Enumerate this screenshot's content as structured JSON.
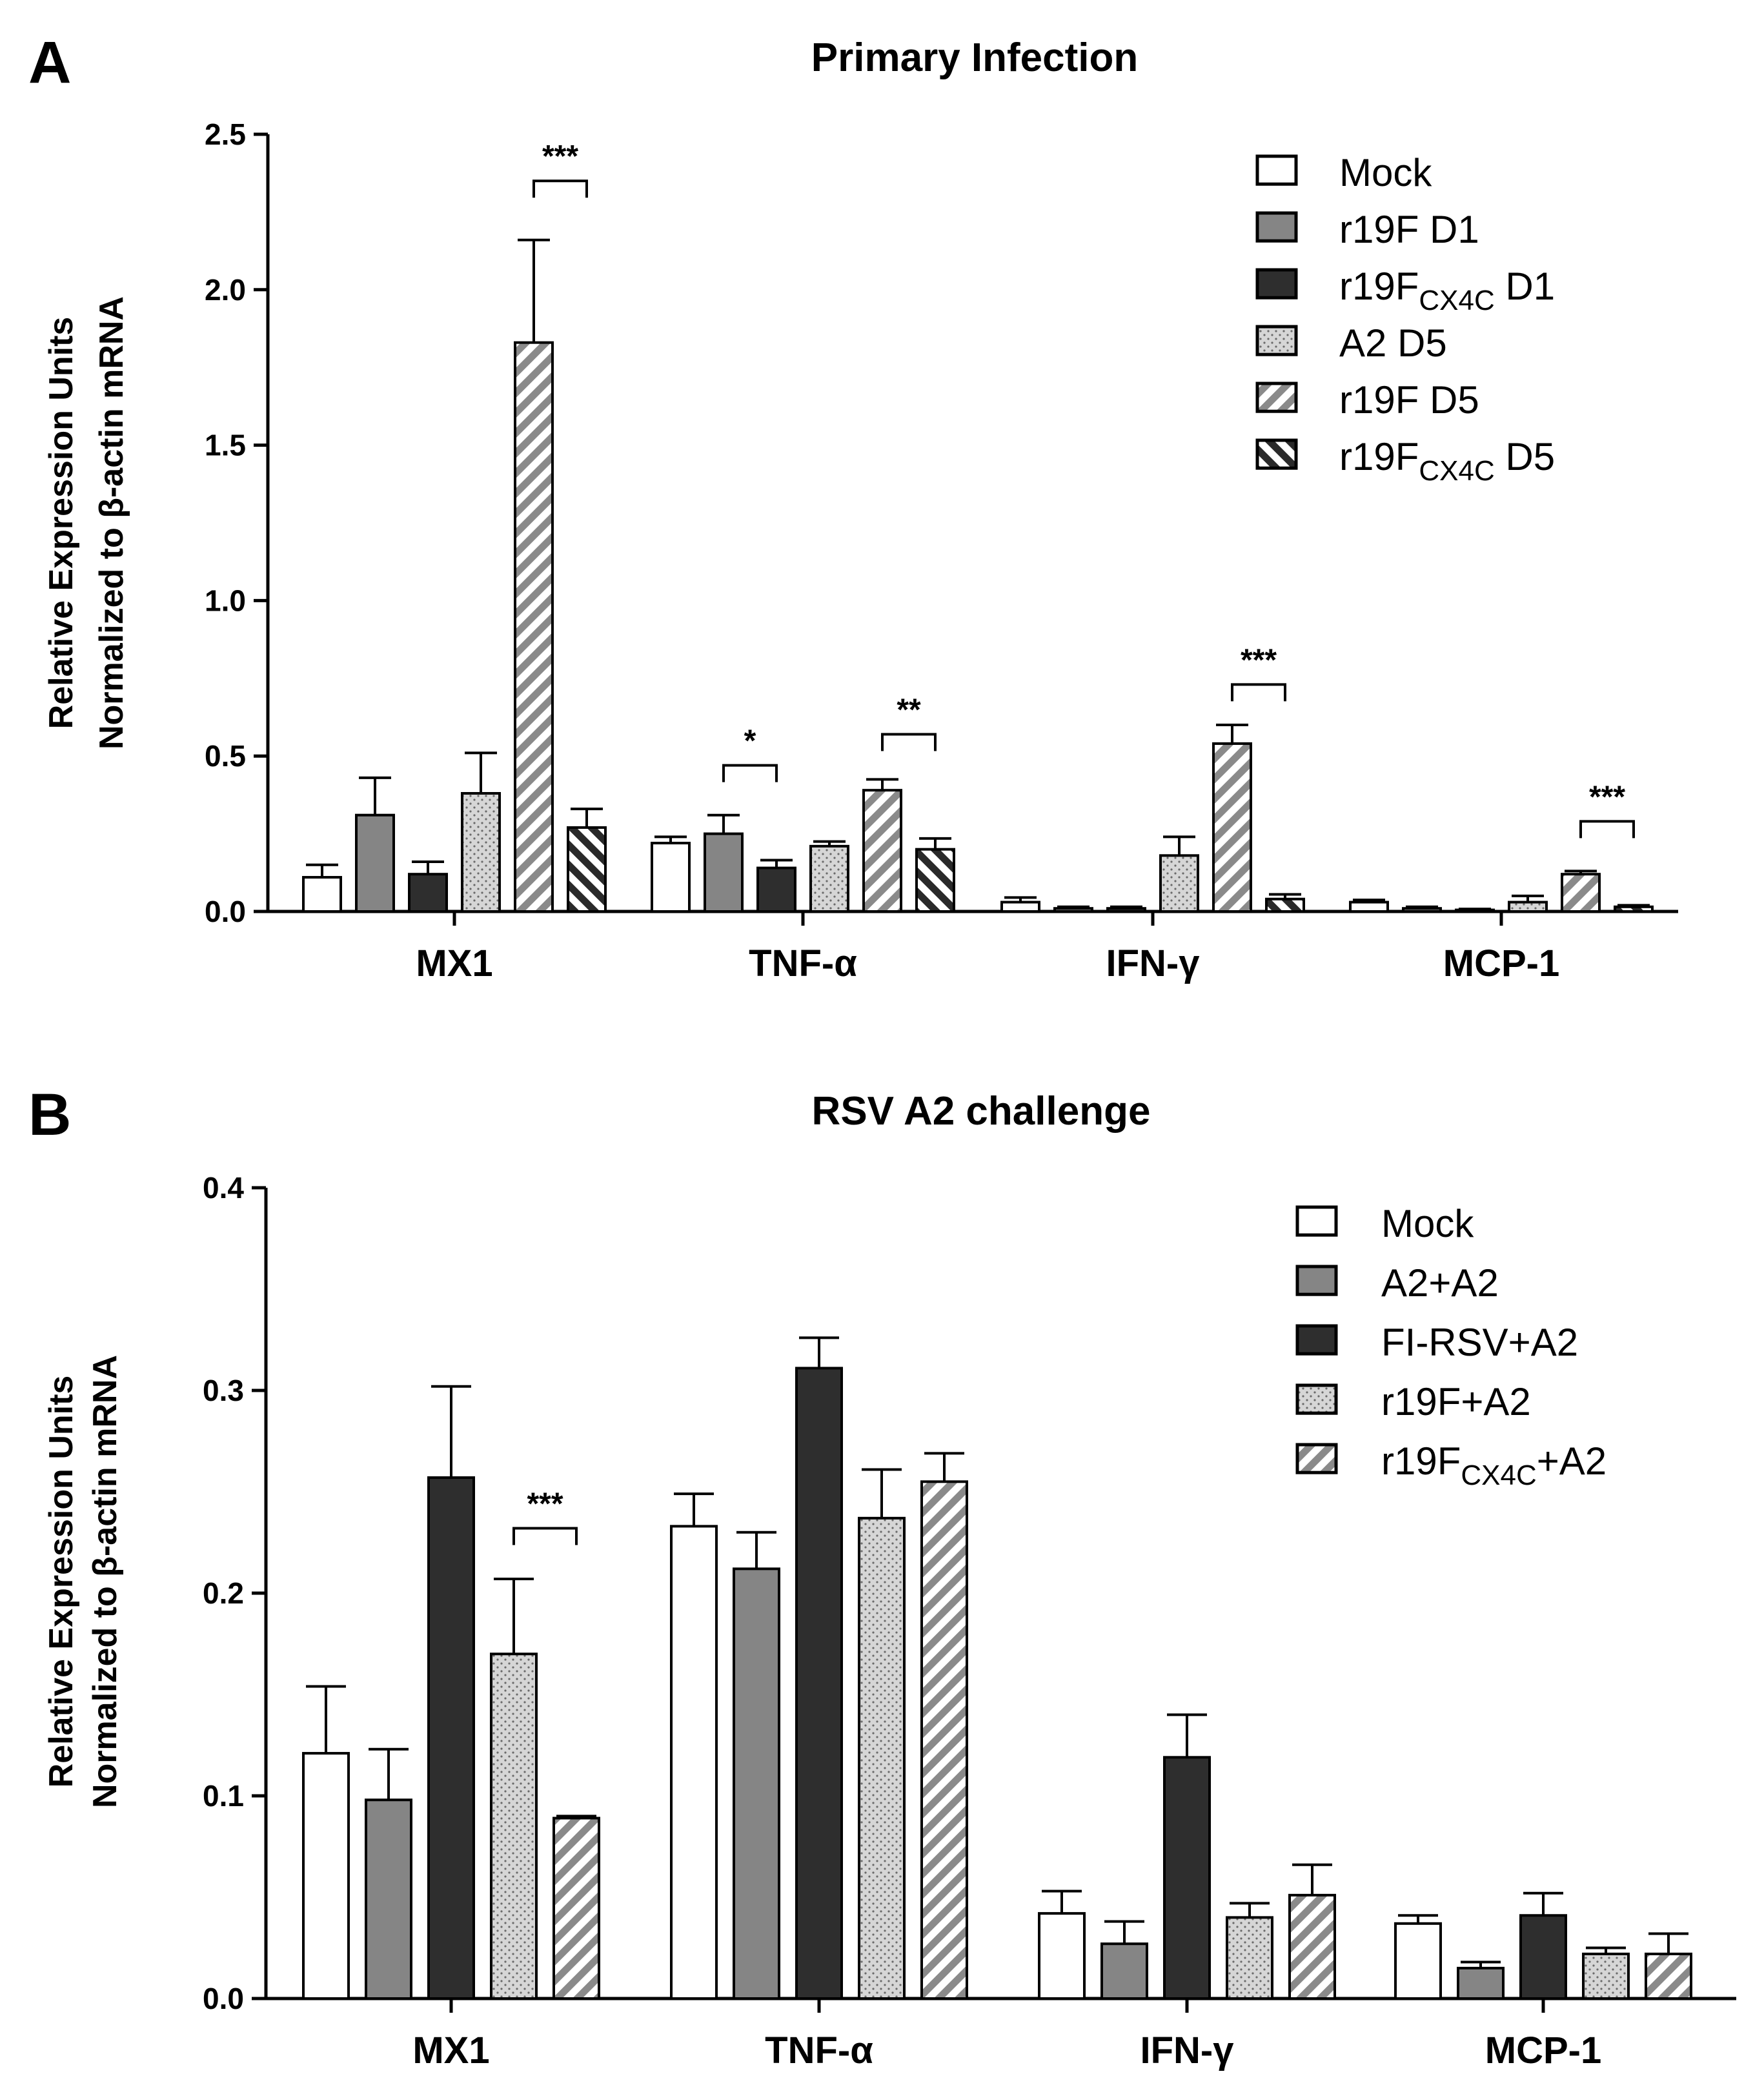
{
  "chart_data": [
    {
      "panel": "A",
      "type": "bar",
      "title": "Primary Infection",
      "ylabel_line1": "Relative Expression Units",
      "ylabel_line2": "Normalized to β-actin mRNA",
      "ylim": [
        0,
        2.5
      ],
      "yticks": [
        "0.0",
        "0.5",
        "1.0",
        "1.5",
        "2.0",
        "2.5"
      ],
      "categories": [
        "MX1",
        "TNF-α",
        "IFN-γ",
        "MCP-1"
      ],
      "series": [
        {
          "name": "Mock",
          "legend_base": "Mock",
          "legend_sub": "",
          "legend_suffix": "",
          "pattern": "white",
          "values": [
            0.11,
            0.22,
            0.03,
            0.03
          ],
          "errors": [
            0.04,
            0.02,
            0.015,
            0.007
          ]
        },
        {
          "name": "r19F D1",
          "legend_base": "r19F D1",
          "legend_sub": "",
          "legend_suffix": "",
          "pattern": "gray",
          "values": [
            0.31,
            0.25,
            0.01,
            0.01
          ],
          "errors": [
            0.12,
            0.06,
            0.005,
            0.005
          ]
        },
        {
          "name": "r19F CX4C D1",
          "legend_base": "r19F",
          "legend_sub": "CX4C",
          "legend_suffix": " D1",
          "pattern": "dark",
          "values": [
            0.12,
            0.14,
            0.01,
            0.005
          ],
          "errors": [
            0.04,
            0.025,
            0.005,
            0.003
          ]
        },
        {
          "name": "A2 D5",
          "legend_base": "A2 D5",
          "legend_sub": "",
          "legend_suffix": "",
          "pattern": "dots",
          "values": [
            0.38,
            0.21,
            0.18,
            0.03
          ],
          "errors": [
            0.13,
            0.015,
            0.06,
            0.02
          ]
        },
        {
          "name": "r19F D5",
          "legend_base": "r19F D5",
          "legend_sub": "",
          "legend_suffix": "",
          "pattern": "hatch",
          "values": [
            1.83,
            0.39,
            0.54,
            0.12
          ],
          "errors": [
            0.33,
            0.035,
            0.06,
            0.01
          ]
        },
        {
          "name": "r19F CX4C D5",
          "legend_base": "r19F",
          "legend_sub": "CX4C",
          "legend_suffix": " D5",
          "pattern": "hatch-back",
          "values": [
            0.27,
            0.2,
            0.04,
            0.015
          ],
          "errors": [
            0.06,
            0.035,
            0.015,
            0.005
          ]
        }
      ],
      "significance": [
        {
          "category": 0,
          "from_series": 4,
          "to_series": 5,
          "y": 2.35,
          "label": "***"
        },
        {
          "category": 1,
          "from_series": 1,
          "to_series": 2,
          "y": 0.47,
          "label": "*"
        },
        {
          "category": 1,
          "from_series": 4,
          "to_series": 5,
          "y": 0.57,
          "label": "**"
        },
        {
          "category": 2,
          "from_series": 4,
          "to_series": 5,
          "y": 0.73,
          "label": "***"
        },
        {
          "category": 3,
          "from_series": 4,
          "to_series": 5,
          "y": 0.29,
          "label": "***"
        }
      ]
    },
    {
      "panel": "B",
      "type": "bar",
      "title": "RSV A2 challenge",
      "ylabel_line1": "Relative Expression Units",
      "ylabel_line2": "Normalized to β-actin mRNA",
      "ylim": [
        0,
        0.4
      ],
      "yticks": [
        "0.0",
        "0.1",
        "0.2",
        "0.3",
        "0.4"
      ],
      "categories": [
        "MX1",
        "TNF-α",
        "IFN-γ",
        "MCP-1"
      ],
      "series": [
        {
          "name": "Mock",
          "legend_base": "Mock",
          "legend_sub": "",
          "legend_suffix": "",
          "pattern": "white",
          "values": [
            0.121,
            0.233,
            0.042,
            0.037
          ],
          "errors": [
            0.033,
            0.016,
            0.011,
            0.004
          ]
        },
        {
          "name": "A2+A2",
          "legend_base": "A2+A2",
          "legend_sub": "",
          "legend_suffix": "",
          "pattern": "gray",
          "values": [
            0.098,
            0.212,
            0.027,
            0.015
          ],
          "errors": [
            0.025,
            0.018,
            0.011,
            0.003
          ]
        },
        {
          "name": "FI-RSV+A2",
          "legend_base": "FI-RSV+A2",
          "legend_sub": "",
          "legend_suffix": "",
          "pattern": "dark",
          "values": [
            0.257,
            0.311,
            0.119,
            0.041
          ],
          "errors": [
            0.045,
            0.015,
            0.021,
            0.011
          ]
        },
        {
          "name": "r19F+A2",
          "legend_base": "r19F+A2",
          "legend_sub": "",
          "legend_suffix": "",
          "pattern": "dots",
          "values": [
            0.17,
            0.237,
            0.04,
            0.022
          ],
          "errors": [
            0.037,
            0.024,
            0.007,
            0.003
          ]
        },
        {
          "name": "r19F CX4C+A2",
          "legend_base": "r19F",
          "legend_sub": "CX4C",
          "legend_suffix": "+A2",
          "pattern": "hatch",
          "values": [
            0.089,
            0.255,
            0.051,
            0.022
          ],
          "errors": [
            0.001,
            0.014,
            0.015,
            0.01
          ]
        }
      ],
      "significance": [
        {
          "category": 0,
          "from_series": 3,
          "to_series": 4,
          "y": 0.232,
          "label": "***"
        }
      ]
    }
  ]
}
